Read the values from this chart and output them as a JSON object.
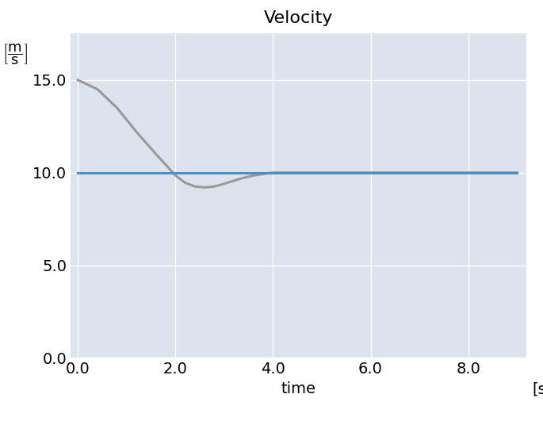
{
  "title": "Velocity",
  "xlabel": "time",
  "xlim": [
    -0.15,
    9.2
  ],
  "ylim": [
    0.0,
    17.5
  ],
  "yticks": [
    0.0,
    5.0,
    10.0,
    15.0
  ],
  "xticks": [
    0.0,
    2.0,
    4.0,
    6.0,
    8.0
  ],
  "vehicle1": {
    "x": [
      0.0,
      9.0
    ],
    "y": [
      10.0,
      10.0
    ],
    "color": "#4a90c4",
    "linewidth": 2.2
  },
  "vehicle2": {
    "x": [
      0.0,
      0.4,
      0.8,
      1.2,
      1.6,
      2.0,
      2.2,
      2.4,
      2.6,
      2.8,
      3.0,
      3.3,
      3.6,
      4.0,
      5.0,
      6.0,
      7.0,
      8.0,
      9.0
    ],
    "y": [
      15.0,
      14.5,
      13.5,
      12.2,
      11.0,
      9.85,
      9.45,
      9.25,
      9.2,
      9.25,
      9.4,
      9.65,
      9.85,
      10.0,
      10.0,
      10.0,
      10.0,
      10.0,
      10.0
    ],
    "color": "#999999",
    "linewidth": 2.2
  },
  "axes_facecolor": "#dce3ef",
  "figure_facecolor": "#ffffff",
  "grid_color": "#ffffff",
  "grid_linewidth": 1.0,
  "tick_labelsize": 14,
  "title_fontsize": 16
}
